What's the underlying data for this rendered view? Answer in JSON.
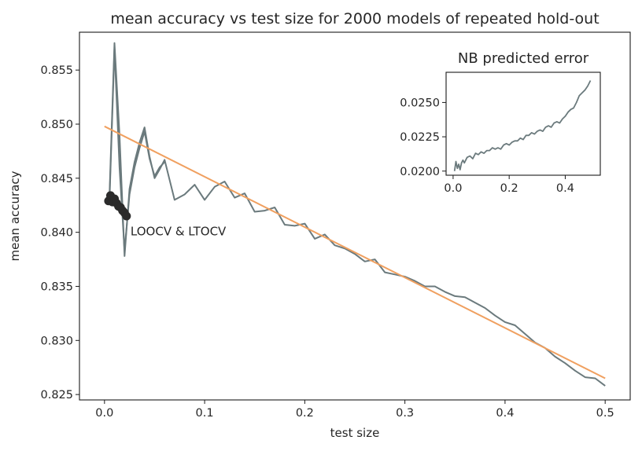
{
  "chart_data": [
    {
      "type": "line",
      "title": "mean accuracy vs test size for 2000 models of repeated hold-out",
      "xlabel": "test size",
      "ylabel": "mean accuracy",
      "xlim": [
        -0.025,
        0.525
      ],
      "ylim": [
        0.8245,
        0.8585
      ],
      "xticks": [
        0.0,
        0.1,
        0.2,
        0.3,
        0.4,
        0.5
      ],
      "xtick_labels": [
        "0.0",
        "0.1",
        "0.2",
        "0.3",
        "0.4",
        "0.5"
      ],
      "yticks": [
        0.825,
        0.83,
        0.835,
        0.84,
        0.845,
        0.85,
        0.855
      ],
      "ytick_labels": [
        "0.825",
        "0.830",
        "0.835",
        "0.840",
        "0.845",
        "0.850",
        "0.855"
      ],
      "grid": false,
      "annotations": [
        {
          "text": "LOOCV & LTOCV",
          "x": 0.026,
          "y": 0.8401
        }
      ],
      "series": [
        {
          "name": "",
          "color": "#6b7a7d",
          "style": "line",
          "x": [
            0.005,
            0.01,
            0.015,
            0.02,
            0.025,
            0.03,
            0.035,
            0.04,
            0.045,
            0.05,
            0.055,
            0.06,
            0.07,
            0.08,
            0.09,
            0.1,
            0.11,
            0.12,
            0.13,
            0.14,
            0.15,
            0.16,
            0.17,
            0.18,
            0.19,
            0.2,
            0.21,
            0.22,
            0.23,
            0.24,
            0.25,
            0.26,
            0.27,
            0.28,
            0.29,
            0.3,
            0.31,
            0.32,
            0.33,
            0.34,
            0.35,
            0.36,
            0.37,
            0.38,
            0.39,
            0.4,
            0.41,
            0.42,
            0.43,
            0.44,
            0.45,
            0.46,
            0.47,
            0.48,
            0.49,
            0.5
          ],
          "y": [
            0.8435,
            0.8575,
            0.849,
            0.8378,
            0.844,
            0.8465,
            0.8483,
            0.8497,
            0.847,
            0.845,
            0.8458,
            0.8467,
            0.843,
            0.8435,
            0.8444,
            0.843,
            0.8442,
            0.8447,
            0.8432,
            0.8436,
            0.8419,
            0.842,
            0.8423,
            0.8407,
            0.8406,
            0.8408,
            0.8394,
            0.8398,
            0.8388,
            0.8385,
            0.838,
            0.8373,
            0.8375,
            0.8363,
            0.8361,
            0.8359,
            0.8355,
            0.835,
            0.835,
            0.8345,
            0.8341,
            0.834,
            0.8335,
            0.833,
            0.8323,
            0.8317,
            0.8314,
            0.8306,
            0.8298,
            0.8293,
            0.8285,
            0.8279,
            0.8272,
            0.8266,
            0.8265,
            0.8258
          ]
        },
        {
          "name": "",
          "color": "#6b7a7d",
          "style": "line",
          "x": [
            0.005,
            0.01,
            0.015,
            0.02,
            0.025,
            0.03,
            0.035,
            0.04,
            0.045,
            0.05,
            0.055,
            0.06
          ],
          "y": [
            0.843,
            0.857,
            0.846,
            0.8383,
            0.8435,
            0.846,
            0.8478,
            0.8493,
            0.8468,
            0.8452,
            0.846,
            0.8465
          ]
        },
        {
          "name": "",
          "color": "#f0a060",
          "style": "line",
          "x": [
            0.0,
            0.5
          ],
          "y": [
            0.8498,
            0.8265
          ]
        },
        {
          "name": "",
          "color": "#2b2b2b",
          "style": "markers",
          "x": [
            0.004,
            0.006,
            0.008,
            0.01,
            0.012,
            0.014,
            0.016,
            0.018,
            0.02,
            0.022
          ],
          "y": [
            0.8429,
            0.8434,
            0.8428,
            0.8431,
            0.8427,
            0.8424,
            0.8423,
            0.842,
            0.8418,
            0.8415
          ]
        }
      ]
    },
    {
      "type": "line",
      "title": "NB predicted error",
      "xlabel": "",
      "ylabel": "",
      "xlim": [
        -0.025,
        0.525
      ],
      "ylim": [
        0.0197,
        0.0272
      ],
      "xticks": [
        0.0,
        0.2,
        0.4
      ],
      "xtick_labels": [
        "0.0",
        "0.2",
        "0.4"
      ],
      "yticks": [
        0.02,
        0.0225,
        0.025
      ],
      "ytick_labels": [
        "0.0200",
        "0.0225",
        "0.0250"
      ],
      "grid": false,
      "series": [
        {
          "name": "",
          "color": "#6b7a7d",
          "style": "line",
          "x": [
            0.005,
            0.01,
            0.015,
            0.02,
            0.025,
            0.03,
            0.035,
            0.04,
            0.05,
            0.06,
            0.07,
            0.08,
            0.09,
            0.1,
            0.11,
            0.12,
            0.13,
            0.14,
            0.15,
            0.16,
            0.17,
            0.18,
            0.19,
            0.2,
            0.21,
            0.22,
            0.23,
            0.24,
            0.25,
            0.26,
            0.27,
            0.28,
            0.29,
            0.3,
            0.31,
            0.32,
            0.33,
            0.34,
            0.35,
            0.36,
            0.37,
            0.38,
            0.39,
            0.4,
            0.41,
            0.42,
            0.43,
            0.44,
            0.45,
            0.46,
            0.47,
            0.48,
            0.49
          ],
          "y": [
            0.02,
            0.0207,
            0.0202,
            0.0205,
            0.0201,
            0.0206,
            0.0208,
            0.0206,
            0.021,
            0.0211,
            0.0209,
            0.0213,
            0.0212,
            0.0214,
            0.0213,
            0.0215,
            0.0215,
            0.0217,
            0.0216,
            0.0217,
            0.0216,
            0.0219,
            0.022,
            0.0219,
            0.0221,
            0.0222,
            0.0222,
            0.0224,
            0.0223,
            0.0226,
            0.0226,
            0.0228,
            0.0227,
            0.0229,
            0.023,
            0.0229,
            0.0232,
            0.0233,
            0.0232,
            0.0235,
            0.0236,
            0.0235,
            0.0238,
            0.024,
            0.0243,
            0.0245,
            0.0246,
            0.025,
            0.0255,
            0.0257,
            0.0259,
            0.0262,
            0.0266
          ]
        }
      ]
    }
  ]
}
